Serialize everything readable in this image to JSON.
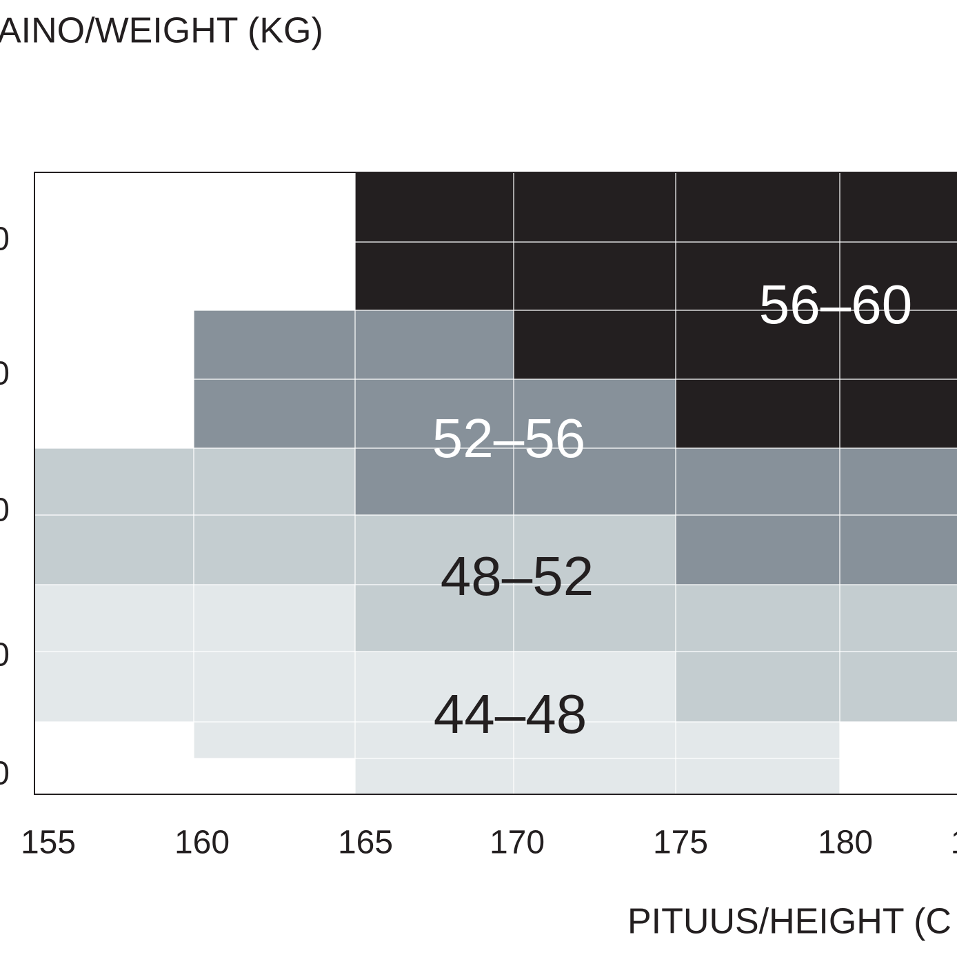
{
  "y_axis": {
    "title": "AINO/WEIGHT (KG)",
    "tick_labels": [
      "0",
      "0",
      "0",
      "0",
      "0"
    ]
  },
  "x_axis": {
    "title": "PITUUS/HEIGHT (C",
    "tick_labels": [
      "155",
      "160",
      "165",
      "170",
      "175",
      "180",
      "1"
    ]
  },
  "regions": [
    {
      "label": "56–60",
      "color": "#231f20",
      "label_color": "#ffffff"
    },
    {
      "label": "52–56",
      "color": "#87919a",
      "label_color": "#ffffff"
    },
    {
      "label": "48–52",
      "color": "#c4cdd0",
      "label_color": "#231f20"
    },
    {
      "label": "44–48",
      "color": "#e3e8ea",
      "label_color": "#231f20"
    }
  ]
}
